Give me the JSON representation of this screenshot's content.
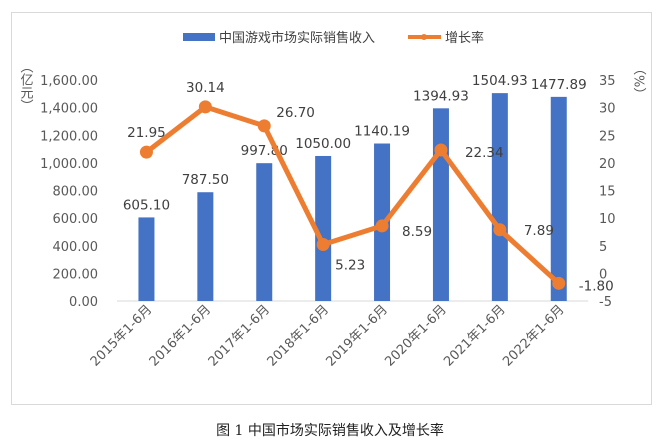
{
  "chart_data": {
    "type": "bar+line",
    "categories": [
      "2015年1-6月",
      "2016年1-6月",
      "2017年1-6月",
      "2018年1-6月",
      "2019年1-6月",
      "2020年1-6月",
      "2021年1-6月",
      "2022年1-6月"
    ],
    "series": [
      {
        "name": "中国游戏市场实际销售收入",
        "type": "bar",
        "axis": "left",
        "color": "#4472c4",
        "values": [
          605.1,
          787.5,
          997.8,
          1050.0,
          1140.19,
          1394.93,
          1504.93,
          1477.89
        ],
        "labels": [
          "605.10",
          "787.50",
          "997.80",
          "1050.00",
          "1140.19",
          "1394.93",
          "1504.93",
          "1477.89"
        ]
      },
      {
        "name": "增长率",
        "type": "line",
        "axis": "right",
        "color": "#ed7d31",
        "values": [
          21.95,
          30.14,
          26.7,
          5.23,
          8.59,
          22.34,
          7.89,
          -1.8
        ],
        "labels": [
          "21.95",
          "30.14",
          "26.70",
          "5.23",
          "8.59",
          "22.34",
          "7.89",
          "-1.80"
        ]
      }
    ],
    "left_axis": {
      "label": "（亿元）",
      "ylim": [
        0,
        1600
      ],
      "ticks": [
        "0.00",
        "200.00",
        "400.00",
        "600.00",
        "800.00",
        "1,000.00",
        "1,200.00",
        "1,400.00",
        "1,600.00"
      ]
    },
    "right_axis": {
      "label": "（%）",
      "ylim": [
        -5,
        35
      ],
      "ticks": [
        "-5",
        "0",
        "5",
        "10",
        "15",
        "20",
        "25",
        "30",
        "35"
      ]
    },
    "legend": "top",
    "grid": false
  },
  "caption": "图  1  中国市场实际销售收入及增长率"
}
